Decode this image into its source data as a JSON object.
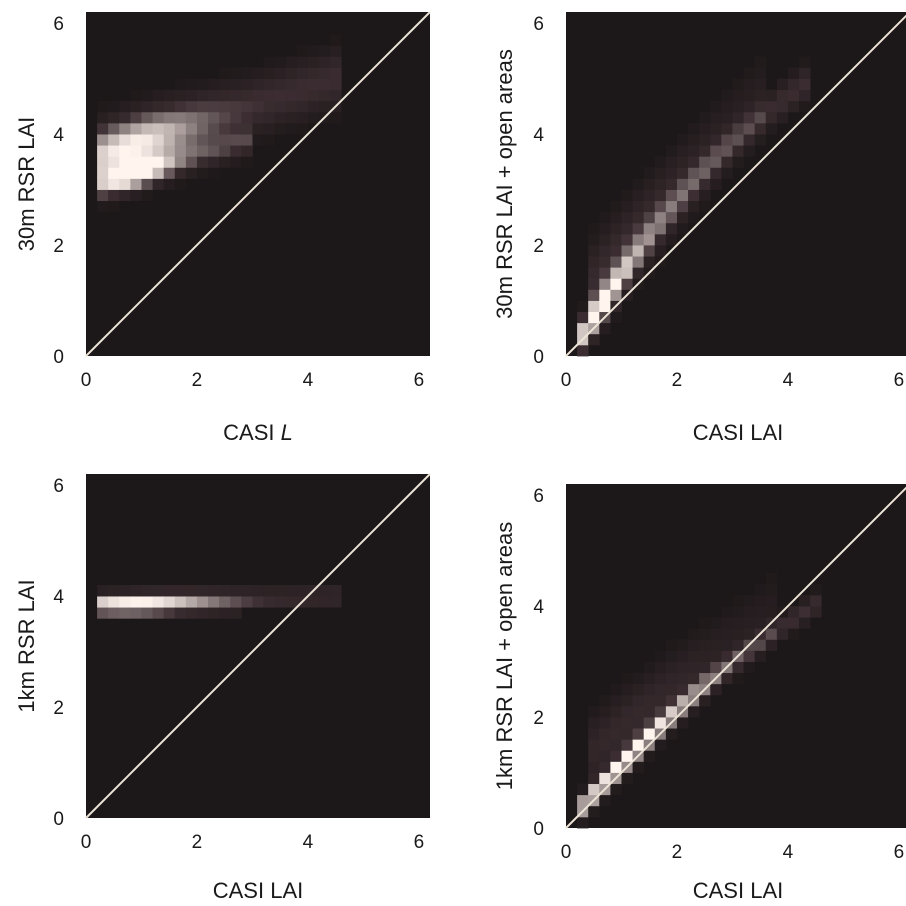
{
  "colors": {
    "background": "#1c1718",
    "identity_line": "#ece4d6",
    "density_low": "#3a2c30",
    "density_high": "#fff4ee"
  },
  "chart_data": [
    {
      "type": "heatmap",
      "xlabel": "CASI L",
      "ylabel": "30m RSR LAI",
      "xlim": [
        0,
        6.2
      ],
      "ylim": [
        0,
        6.2
      ],
      "xticks": [
        "0",
        "2",
        "4",
        "6"
      ],
      "yticks": [
        "0",
        "2",
        "4",
        "6"
      ],
      "identity_line": true,
      "bin_size": 0.2,
      "density_ridges": [
        {
          "x_start": 0.2,
          "x_end": 4.5,
          "y_start": 3.6,
          "y_end": 5.0,
          "spread": 0.5,
          "peak_x": 0.8,
          "peak_spread": 1.2
        },
        {
          "x_start": 0.3,
          "x_end": 3.0,
          "y_start": 3.1,
          "y_end": 3.9,
          "spread": 0.25,
          "peak_x": 0.9,
          "peak_spread": 0.6
        }
      ]
    },
    {
      "type": "heatmap",
      "xlabel": "CASI LAI",
      "ylabel": "30m RSR LAI + open areas",
      "xlim": [
        0,
        6.2
      ],
      "ylim": [
        0,
        6.2
      ],
      "xticks": [
        "0",
        "2",
        "4",
        "6"
      ],
      "yticks": [
        "0",
        "2",
        "4",
        "6"
      ],
      "identity_line": true,
      "bin_size": 0.2,
      "density_ridges": [
        {
          "x_start": 0.3,
          "x_end": 4.3,
          "y_start": 0.4,
          "y_end": 4.9,
          "spread": 0.3,
          "peak_x": 0.5,
          "peak_spread": 0.7,
          "curve": 0.35
        },
        {
          "x_start": 0.4,
          "x_end": 3.5,
          "y_start": 1.2,
          "y_end": 4.7,
          "spread": 0.7,
          "peak_x": 1.0,
          "peak_spread": 1.5,
          "weight": 0.35
        }
      ]
    },
    {
      "type": "heatmap",
      "xlabel": "CASI LAI",
      "ylabel": "1km RSR LAI",
      "xlim": [
        0,
        6.2
      ],
      "ylim": [
        0,
        6.2
      ],
      "xticks": [
        "0",
        "2",
        "4",
        "6"
      ],
      "yticks": [
        "0",
        "2",
        "4",
        "6"
      ],
      "identity_line": true,
      "bin_size": 0.2,
      "density_ridges": [
        {
          "x_start": 0.2,
          "x_end": 4.6,
          "y_start": 3.9,
          "y_end": 4.0,
          "spread": 0.15,
          "peak_x": 1.0,
          "peak_spread": 1.5
        },
        {
          "x_start": 0.3,
          "x_end": 2.7,
          "y_start": 3.7,
          "y_end": 3.7,
          "spread": 0.1,
          "peak_x": 0.8,
          "peak_spread": 1.0,
          "weight": 0.4
        }
      ]
    },
    {
      "type": "heatmap",
      "xlabel": "CASI LAI",
      "ylabel": "1km RSR LAI + open areas",
      "xlim": [
        0,
        6.2
      ],
      "ylim": [
        0,
        6.2
      ],
      "xticks": [
        "0",
        "2",
        "4",
        "6"
      ],
      "yticks": [
        "0",
        "2",
        "4",
        "6"
      ],
      "identity_line": true,
      "bin_size": 0.2,
      "density_ridges": [
        {
          "x_start": 0.3,
          "x_end": 4.6,
          "y_start": 0.4,
          "y_end": 4.1,
          "spread": 0.2,
          "peak_x": 0.9,
          "peak_spread": 1.6,
          "curve": 0.25
        },
        {
          "x_start": 0.5,
          "x_end": 3.8,
          "y_start": 1.4,
          "y_end": 4.0,
          "spread": 0.6,
          "peak_x": 1.2,
          "peak_spread": 1.5,
          "weight": 0.3
        }
      ]
    }
  ]
}
